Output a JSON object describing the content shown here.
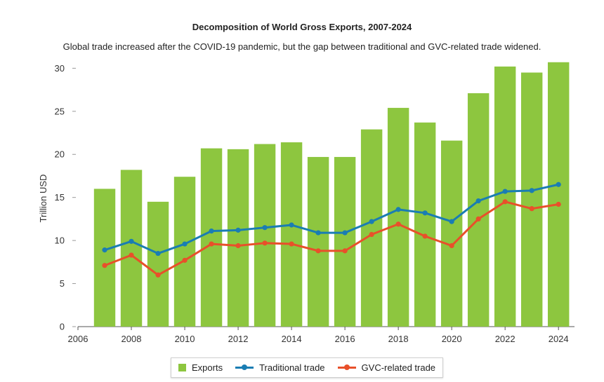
{
  "chart_data": {
    "type": "bar+line",
    "title": "Decomposition of World Gross Exports, 2007-2024",
    "subtitle": "Global trade increased after the COVID-19 pandemic, but the gap between traditional and GVC-related trade widened.",
    "ylabel": "Trillion USD",
    "xlabel": "",
    "xlim": [
      2006,
      2024.6
    ],
    "ylim": [
      0,
      30.6
    ],
    "x_ticks": [
      2006,
      2008,
      2010,
      2012,
      2014,
      2016,
      2018,
      2020,
      2022,
      2024
    ],
    "y_ticks": [
      0,
      5,
      10,
      15,
      20,
      25,
      30
    ],
    "x": [
      2007,
      2008,
      2009,
      2010,
      2011,
      2012,
      2013,
      2014,
      2015,
      2016,
      2017,
      2018,
      2019,
      2020,
      2021,
      2022,
      2023,
      2024
    ],
    "series": [
      {
        "name": "Exports",
        "kind": "bar",
        "color": "#8dc63f",
        "values": [
          16.0,
          18.2,
          14.5,
          17.4,
          20.7,
          20.6,
          21.2,
          21.4,
          19.7,
          19.7,
          22.9,
          25.4,
          23.7,
          21.6,
          27.1,
          30.2,
          29.5,
          30.7
        ]
      },
      {
        "name": "Traditional trade",
        "kind": "line",
        "color": "#1a7db3",
        "values": [
          8.9,
          9.9,
          8.5,
          9.6,
          11.1,
          11.2,
          11.5,
          11.8,
          10.9,
          10.9,
          12.2,
          13.6,
          13.2,
          12.2,
          14.6,
          15.7,
          15.8,
          16.5
        ]
      },
      {
        "name": "GVC-related trade",
        "kind": "line",
        "color": "#e8502a",
        "values": [
          7.1,
          8.3,
          6.0,
          7.7,
          9.6,
          9.4,
          9.7,
          9.6,
          8.8,
          8.8,
          10.7,
          11.9,
          10.5,
          9.4,
          12.5,
          14.5,
          13.7,
          14.2
        ]
      }
    ],
    "legend_position": "bottom-center",
    "grid": false
  }
}
